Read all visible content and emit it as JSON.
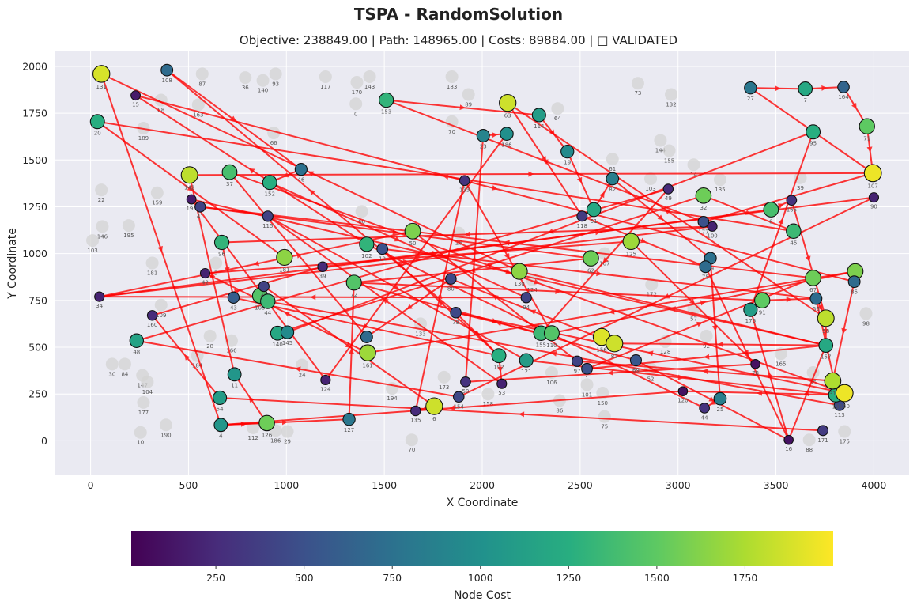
{
  "chart_data": {
    "type": "scatter",
    "title": "TSPA - RandomSolution",
    "subtitle": "Objective: 238849.00 | Path: 148965.00 | Costs: 89884.00 | □ VALIDATED",
    "xlabel": "X Coordinate",
    "ylabel": "Y Coordinate",
    "xlim": [
      -180,
      4180
    ],
    "ylim": [
      -180,
      2080
    ],
    "xticks": [
      0,
      500,
      1000,
      1500,
      2000,
      2500,
      3000,
      3500,
      4000
    ],
    "yticks": [
      0,
      250,
      500,
      750,
      1000,
      1250,
      1500,
      1750,
      2000
    ],
    "grid": true,
    "colorbar": {
      "label": "Node Cost",
      "colormap": "viridis",
      "range": [
        10,
        2000
      ],
      "ticks": [
        250,
        500,
        750,
        1000,
        1250,
        1500,
        1750
      ]
    },
    "colors": {
      "plot_background": "#eaeaf2",
      "edge": "#ff0000",
      "unselected_node": "#d3d3d3"
    },
    "selected_nodes": [
      {
        "id": "131",
        "x": 55,
        "y": 1960,
        "cost": 1880
      },
      {
        "id": "108",
        "x": 390,
        "y": 1980,
        "cost": 700
      },
      {
        "id": "15",
        "x": 230,
        "y": 1845,
        "cost": 150
      },
      {
        "id": "20",
        "x": 35,
        "y": 1705,
        "cost": 1250
      },
      {
        "id": "153",
        "x": 1510,
        "y": 1820,
        "cost": 1300
      },
      {
        "id": "63",
        "x": 2130,
        "y": 1805,
        "cost": 1850
      },
      {
        "id": "114",
        "x": 2290,
        "y": 1740,
        "cost": 1100
      },
      {
        "id": "23",
        "x": 2005,
        "y": 1630,
        "cost": 900
      },
      {
        "id": "186",
        "x": 2125,
        "y": 1640,
        "cost": 1000
      },
      {
        "id": "19",
        "x": 2435,
        "y": 1545,
        "cost": 950
      },
      {
        "id": "142",
        "x": 505,
        "y": 1420,
        "cost": 1800
      },
      {
        "id": "37",
        "x": 710,
        "y": 1435,
        "cost": 1400
      },
      {
        "id": "152",
        "x": 915,
        "y": 1380,
        "cost": 1250
      },
      {
        "id": "46",
        "x": 1075,
        "y": 1450,
        "cost": 750
      },
      {
        "id": "133",
        "x": 1910,
        "y": 1390,
        "cost": 300
      },
      {
        "id": "82",
        "x": 2665,
        "y": 1400,
        "cost": 850
      },
      {
        "id": "49",
        "x": 2950,
        "y": 1345,
        "cost": 250
      },
      {
        "id": "32",
        "x": 3130,
        "y": 1310,
        "cost": 1550
      },
      {
        "id": "27",
        "x": 3370,
        "y": 1885,
        "cost": 800
      },
      {
        "id": "7",
        "x": 3650,
        "y": 1880,
        "cost": 1200
      },
      {
        "id": "164",
        "x": 3845,
        "y": 1890,
        "cost": 650
      },
      {
        "id": "95",
        "x": 3690,
        "y": 1650,
        "cost": 1250
      },
      {
        "id": "71",
        "x": 3965,
        "y": 1680,
        "cost": 1500
      },
      {
        "id": "107",
        "x": 3995,
        "y": 1430,
        "cost": 1950
      },
      {
        "id": "90",
        "x": 4000,
        "y": 1300,
        "cost": 200
      },
      {
        "id": "195",
        "x": 515,
        "y": 1290,
        "cost": 150
      },
      {
        "id": "41",
        "x": 560,
        "y": 1250,
        "cost": 400
      },
      {
        "id": "115",
        "x": 905,
        "y": 1200,
        "cost": 400
      },
      {
        "id": "165",
        "x": 3580,
        "y": 1285,
        "cost": 300
      },
      {
        "id": "8",
        "x": 3475,
        "y": 1235,
        "cost": 1400
      },
      {
        "id": "118",
        "x": 2510,
        "y": 1200,
        "cost": 350
      },
      {
        "id": "51",
        "x": 2570,
        "y": 1235,
        "cost": 1200
      },
      {
        "id": "96",
        "x": 670,
        "y": 1060,
        "cost": 1300
      },
      {
        "id": "181",
        "x": 990,
        "y": 980,
        "cost": 1650
      },
      {
        "id": "102",
        "x": 1410,
        "y": 1050,
        "cost": 1300
      },
      {
        "id": "12",
        "x": 1490,
        "y": 1025,
        "cost": 500
      },
      {
        "id": "50",
        "x": 1645,
        "y": 1120,
        "cost": 1600
      },
      {
        "id": "177",
        "x": 3130,
        "y": 1170,
        "cost": 500
      },
      {
        "id": "100",
        "x": 3175,
        "y": 1145,
        "cost": 200
      },
      {
        "id": "125",
        "x": 2760,
        "y": 1065,
        "cost": 1700
      },
      {
        "id": "45",
        "x": 3590,
        "y": 1120,
        "cost": 1350
      },
      {
        "id": "62",
        "x": 2555,
        "y": 975,
        "cost": 1550
      },
      {
        "id": "99",
        "x": 3165,
        "y": 975,
        "cost": 750
      },
      {
        "id": "75",
        "x": 3140,
        "y": 930,
        "cost": 700
      },
      {
        "id": "81",
        "x": 3905,
        "y": 905,
        "cost": 1600
      },
      {
        "id": "85",
        "x": 3900,
        "y": 850,
        "cost": 700
      },
      {
        "id": "42",
        "x": 585,
        "y": 895,
        "cost": 200
      },
      {
        "id": "39",
        "x": 1185,
        "y": 930,
        "cost": 250
      },
      {
        "id": "34",
        "x": 45,
        "y": 770,
        "cost": 200
      },
      {
        "id": "43",
        "x": 730,
        "y": 765,
        "cost": 600
      },
      {
        "id": "109",
        "x": 865,
        "y": 775,
        "cost": 1450
      },
      {
        "id": "47",
        "x": 885,
        "y": 825,
        "cost": 400
      },
      {
        "id": "44b",
        "x": 905,
        "y": 745,
        "cost": 1350
      },
      {
        "id": "72",
        "x": 1345,
        "y": 845,
        "cost": 1450
      },
      {
        "id": "80",
        "x": 1840,
        "y": 865,
        "cost": 450
      },
      {
        "id": "130",
        "x": 2190,
        "y": 905,
        "cost": 1650
      },
      {
        "id": "67",
        "x": 3690,
        "y": 870,
        "cost": 1550
      },
      {
        "id": "94",
        "x": 2225,
        "y": 765,
        "cost": 400
      },
      {
        "id": "79",
        "x": 1865,
        "y": 685,
        "cost": 450
      },
      {
        "id": "160",
        "x": 315,
        "y": 670,
        "cost": 250
      },
      {
        "id": "48",
        "x": 235,
        "y": 535,
        "cost": 1150
      },
      {
        "id": "176",
        "x": 3370,
        "y": 700,
        "cost": 1100
      },
      {
        "id": "91",
        "x": 3430,
        "y": 750,
        "cost": 1500
      },
      {
        "id": "56",
        "x": 3705,
        "y": 760,
        "cost": 700
      },
      {
        "id": "58",
        "x": 3755,
        "y": 655,
        "cost": 1800
      },
      {
        "id": "157",
        "x": 3755,
        "y": 510,
        "cost": 1200
      },
      {
        "id": "140",
        "x": 955,
        "y": 575,
        "cost": 1200
      },
      {
        "id": "145",
        "x": 1005,
        "y": 580,
        "cost": 950
      },
      {
        "id": "162",
        "x": 1410,
        "y": 555,
        "cost": 700
      },
      {
        "id": "161",
        "x": 1415,
        "y": 470,
        "cost": 1700
      },
      {
        "id": "155",
        "x": 2300,
        "y": 575,
        "cost": 1350
      },
      {
        "id": "110",
        "x": 2355,
        "y": 575,
        "cost": 1450
      },
      {
        "id": "156",
        "x": 2610,
        "y": 555,
        "cost": 1900
      },
      {
        "id": "87",
        "x": 2675,
        "y": 520,
        "cost": 1850
      },
      {
        "id": "192",
        "x": 2085,
        "y": 455,
        "cost": 1250
      },
      {
        "id": "121",
        "x": 2225,
        "y": 430,
        "cost": 1100
      },
      {
        "id": "97",
        "x": 2485,
        "y": 425,
        "cost": 400
      },
      {
        "id": "1",
        "x": 2535,
        "y": 385,
        "cost": 500
      },
      {
        "id": "69",
        "x": 2785,
        "y": 430,
        "cost": 550
      },
      {
        "id": "78",
        "x": 3395,
        "y": 410,
        "cost": 100
      },
      {
        "id": "11",
        "x": 735,
        "y": 355,
        "cost": 1050
      },
      {
        "id": "54",
        "x": 660,
        "y": 230,
        "cost": 1100
      },
      {
        "id": "124",
        "x": 1200,
        "y": 325,
        "cost": 200
      },
      {
        "id": "127",
        "x": 1320,
        "y": 115,
        "cost": 800
      },
      {
        "id": "126",
        "x": 900,
        "y": 95,
        "cost": 1550
      },
      {
        "id": "4",
        "x": 665,
        "y": 85,
        "cost": 1050
      },
      {
        "id": "135",
        "x": 1660,
        "y": 160,
        "cost": 250
      },
      {
        "id": "6",
        "x": 1755,
        "y": 185,
        "cost": 1850
      },
      {
        "id": "154",
        "x": 1880,
        "y": 235,
        "cost": 450
      },
      {
        "id": "50b",
        "x": 1915,
        "y": 315,
        "cost": 300
      },
      {
        "id": "53",
        "x": 2100,
        "y": 305,
        "cost": 200
      },
      {
        "id": "120",
        "x": 3025,
        "y": 265,
        "cost": 100
      },
      {
        "id": "44",
        "x": 3135,
        "y": 175,
        "cost": 300
      },
      {
        "id": "25",
        "x": 3215,
        "y": 225,
        "cost": 850
      },
      {
        "id": "16",
        "x": 3565,
        "y": 5,
        "cost": 100
      },
      {
        "id": "171",
        "x": 3740,
        "y": 55,
        "cost": 350
      },
      {
        "id": "113",
        "x": 3825,
        "y": 190,
        "cost": 450
      },
      {
        "id": "13",
        "x": 3805,
        "y": 245,
        "cost": 1250
      },
      {
        "id": "31",
        "x": 3790,
        "y": 320,
        "cost": 1750
      },
      {
        "id": "150",
        "x": 3850,
        "y": 255,
        "cost": 1950
      }
    ],
    "unselected_nodes": [
      {
        "id": "87b",
        "x": 570,
        "y": 1960
      },
      {
        "id": "36",
        "x": 790,
        "y": 1940
      },
      {
        "id": "140b",
        "x": 880,
        "y": 1925
      },
      {
        "id": "93",
        "x": 945,
        "y": 1960
      },
      {
        "id": "117",
        "x": 1200,
        "y": 1945
      },
      {
        "id": "170",
        "x": 1360,
        "y": 1915
      },
      {
        "id": "143",
        "x": 1425,
        "y": 1945
      },
      {
        "id": "0",
        "x": 1355,
        "y": 1800
      },
      {
        "id": "183",
        "x": 1845,
        "y": 1945
      },
      {
        "id": "89",
        "x": 1930,
        "y": 1850
      },
      {
        "id": "73",
        "x": 2795,
        "y": 1910
      },
      {
        "id": "132",
        "x": 2965,
        "y": 1850
      },
      {
        "id": "64",
        "x": 2385,
        "y": 1775
      },
      {
        "id": "70b",
        "x": 1845,
        "y": 1705
      },
      {
        "id": "144",
        "x": 2910,
        "y": 1605
      },
      {
        "id": "155b",
        "x": 2955,
        "y": 1550
      },
      {
        "id": "14",
        "x": 3080,
        "y": 1475
      },
      {
        "id": "61",
        "x": 2665,
        "y": 1505
      },
      {
        "id": "135b",
        "x": 3215,
        "y": 1395
      },
      {
        "id": "39b",
        "x": 3625,
        "y": 1405
      },
      {
        "id": "103b",
        "x": 2860,
        "y": 1400
      },
      {
        "id": "22",
        "x": 55,
        "y": 1340
      },
      {
        "id": "159",
        "x": 340,
        "y": 1325
      },
      {
        "id": "146",
        "x": 60,
        "y": 1145
      },
      {
        "id": "195b",
        "x": 195,
        "y": 1150
      },
      {
        "id": "103",
        "x": 10,
        "y": 1070
      },
      {
        "id": "181b",
        "x": 315,
        "y": 950
      },
      {
        "id": "189",
        "x": 270,
        "y": 1670
      },
      {
        "id": "88b",
        "x": 360,
        "y": 1820
      },
      {
        "id": "163",
        "x": 550,
        "y": 1795
      },
      {
        "id": "66",
        "x": 935,
        "y": 1645
      },
      {
        "id": "184",
        "x": 545,
        "y": 455
      },
      {
        "id": "28",
        "x": 610,
        "y": 560
      },
      {
        "id": "166",
        "x": 720,
        "y": 535
      },
      {
        "id": "30",
        "x": 110,
        "y": 410
      },
      {
        "id": "84",
        "x": 175,
        "y": 410
      },
      {
        "id": "147",
        "x": 265,
        "y": 350
      },
      {
        "id": "104",
        "x": 290,
        "y": 315
      },
      {
        "id": "177b",
        "x": 270,
        "y": 205
      },
      {
        "id": "10",
        "x": 255,
        "y": 45
      },
      {
        "id": "190",
        "x": 385,
        "y": 85
      },
      {
        "id": "112",
        "x": 830,
        "y": 70
      },
      {
        "id": "186b",
        "x": 945,
        "y": 55
      },
      {
        "id": "29",
        "x": 1005,
        "y": 50
      },
      {
        "id": "24",
        "x": 1080,
        "y": 405
      },
      {
        "id": "194",
        "x": 1540,
        "y": 280
      },
      {
        "id": "133b",
        "x": 1685,
        "y": 625
      },
      {
        "id": "70",
        "x": 1640,
        "y": 5
      },
      {
        "id": "173",
        "x": 1805,
        "y": 340
      },
      {
        "id": "158",
        "x": 2030,
        "y": 250
      },
      {
        "id": "86",
        "x": 2395,
        "y": 215
      },
      {
        "id": "101",
        "x": 2535,
        "y": 300
      },
      {
        "id": "150b",
        "x": 2615,
        "y": 255
      },
      {
        "id": "75b",
        "x": 2625,
        "y": 130
      },
      {
        "id": "106",
        "x": 2355,
        "y": 365
      },
      {
        "id": "52",
        "x": 2860,
        "y": 385
      },
      {
        "id": "128",
        "x": 2935,
        "y": 530
      },
      {
        "id": "92",
        "x": 3145,
        "y": 560
      },
      {
        "id": "57",
        "x": 3080,
        "y": 705
      },
      {
        "id": "172",
        "x": 2865,
        "y": 835
      },
      {
        "id": "167",
        "x": 2625,
        "y": 1000
      },
      {
        "id": "165b",
        "x": 3525,
        "y": 465
      },
      {
        "id": "35",
        "x": 3690,
        "y": 365
      },
      {
        "id": "98",
        "x": 3960,
        "y": 680
      },
      {
        "id": "175",
        "x": 3850,
        "y": 50
      },
      {
        "id": "88",
        "x": 3670,
        "y": 5
      },
      {
        "id": "60",
        "x": 1385,
        "y": 1225
      },
      {
        "id": "5",
        "x": 640,
        "y": 950
      },
      {
        "id": "109b",
        "x": 360,
        "y": 725
      },
      {
        "id": "26",
        "x": 1880,
        "y": 1110
      },
      {
        "id": "124b",
        "x": 2255,
        "y": 860
      }
    ],
    "path": [
      "131",
      "4",
      "126",
      "11",
      "142",
      "107",
      "27",
      "7",
      "164",
      "71",
      "107",
      "177",
      "153",
      "114",
      "19",
      "51",
      "82",
      "99",
      "25",
      "44",
      "102",
      "15",
      "85",
      "31",
      "97",
      "50",
      "34",
      "8",
      "165",
      "58",
      "63",
      "118",
      "75",
      "16",
      "157",
      "1",
      "67",
      "41",
      "62",
      "72",
      "69",
      "16",
      "176",
      "95",
      "145",
      "140",
      "32",
      "45",
      "20",
      "181",
      "40",
      "171",
      "54",
      "160",
      "39",
      "90",
      "154",
      "48",
      "49",
      "155",
      "79",
      "108",
      "46",
      "152",
      "94",
      "34",
      "100",
      "96",
      "43",
      "192",
      "12",
      "56",
      "113",
      "44b",
      "109",
      "47",
      "6",
      "135",
      "133",
      "110",
      "81",
      "161",
      "42",
      "125",
      "78",
      "50b",
      "23",
      "186",
      "124",
      "195",
      "157",
      "87",
      "80",
      "162",
      "37",
      "150",
      "79",
      "192",
      "53",
      "115",
      "121",
      "13",
      "120",
      "4",
      "127",
      "72",
      "91",
      "56",
      "58",
      "157",
      "130"
    ]
  }
}
